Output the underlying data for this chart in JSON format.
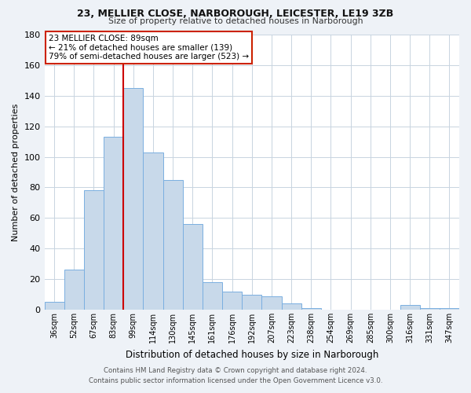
{
  "title1": "23, MELLIER CLOSE, NARBOROUGH, LEICESTER, LE19 3ZB",
  "title2": "Size of property relative to detached houses in Narborough",
  "xlabel": "Distribution of detached houses by size in Narborough",
  "ylabel": "Number of detached properties",
  "bar_labels": [
    "36sqm",
    "52sqm",
    "67sqm",
    "83sqm",
    "99sqm",
    "114sqm",
    "130sqm",
    "145sqm",
    "161sqm",
    "176sqm",
    "192sqm",
    "207sqm",
    "223sqm",
    "238sqm",
    "254sqm",
    "269sqm",
    "285sqm",
    "300sqm",
    "316sqm",
    "331sqm",
    "347sqm"
  ],
  "bar_values": [
    5,
    26,
    78,
    113,
    145,
    103,
    85,
    56,
    18,
    12,
    10,
    9,
    4,
    1,
    0,
    0,
    0,
    0,
    3,
    1,
    1
  ],
  "bar_color": "#c8d9ea",
  "bar_edge_color": "#7aafe0",
  "vline_color": "#cc0000",
  "annotation_text": "23 MELLIER CLOSE: 89sqm\n← 21% of detached houses are smaller (139)\n79% of semi-detached houses are larger (523) →",
  "annotation_box_color": "#ffffff",
  "annotation_box_edge": "#cc2200",
  "ylim": [
    0,
    180
  ],
  "yticks": [
    0,
    20,
    40,
    60,
    80,
    100,
    120,
    140,
    160,
    180
  ],
  "footer_line1": "Contains HM Land Registry data © Crown copyright and database right 2024.",
  "footer_line2": "Contains public sector information licensed under the Open Government Licence v3.0.",
  "bg_color": "#eef2f7",
  "plot_bg_color": "#ffffff",
  "grid_color": "#c8d4e0"
}
